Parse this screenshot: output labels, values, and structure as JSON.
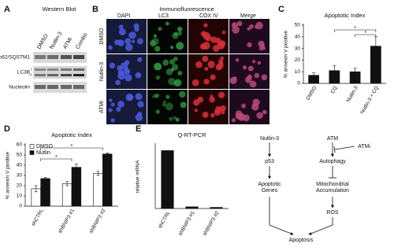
{
  "panels": {
    "A": {
      "letter": "A",
      "title": "Western Blot",
      "lanes": [
        "DMSO",
        "Nutlin-3",
        "ATMi",
        "Combo"
      ],
      "rows": [
        "p62/SQSTM1",
        "LC3B",
        "Nucleolin"
      ],
      "lc3_forms": [
        "I",
        "II"
      ]
    },
    "B": {
      "letter": "B",
      "title": "Immunofluorescence",
      "columns": [
        "DAPI",
        "LC3",
        "COX IV",
        "Merge"
      ],
      "rows": [
        "DMSO",
        "Nutlin-3",
        "ATMi"
      ]
    },
    "C": {
      "letter": "C"
    },
    "D": {
      "letter": "D"
    },
    "E": {
      "letter": "E"
    }
  },
  "chart_data": [
    {
      "type": "bar",
      "title": "Apoptotic Index",
      "y_label": "% annexin V positive",
      "categories": [
        "DMSO",
        "CQ",
        "Nutlin-3",
        "Nutlin-3 + CQ"
      ],
      "values": [
        7,
        11,
        10,
        32
      ],
      "errors": [
        2,
        4,
        3,
        8
      ],
      "color": "#111111",
      "ylim": [
        0,
        50
      ],
      "yticks": [
        0,
        10,
        20,
        30,
        40,
        50
      ],
      "annotations": [
        "*",
        "*"
      ]
    },
    {
      "type": "bar",
      "title": "Apoptotic Index",
      "y_label": "% annexin V positive",
      "categories": [
        "shCTRL",
        "shBNIP3 #1",
        "shBNIP3 #2"
      ],
      "series": [
        {
          "name": "DMSO",
          "color": "#ffffff",
          "values": [
            17,
            22,
            32
          ],
          "errors": [
            3,
            2,
            2
          ]
        },
        {
          "name": "Nutlin",
          "color": "#111111",
          "values": [
            27,
            38,
            51
          ],
          "errors": [
            1,
            3,
            1
          ]
        }
      ],
      "ylim": [
        0,
        60
      ],
      "yticks": [
        0,
        10,
        20,
        30,
        40,
        50,
        60
      ],
      "legend": "upper-left",
      "annotations": [
        "*",
        "*"
      ]
    },
    {
      "type": "bar",
      "title": "Q-RT-PCR",
      "y_label": "relative mRNA",
      "categories": [
        "shCTRL",
        "shBNIP3 #1",
        "shBNIP3 #2"
      ],
      "values": [
        1,
        0.03,
        0.02
      ],
      "color": "#111111",
      "ylim": [
        0,
        1.1
      ]
    }
  ],
  "diagram": {
    "nodes": [
      {
        "label": [
          "Nutlin-3"
        ]
      },
      {
        "label": [
          "p53"
        ]
      },
      {
        "label": [
          "Apoptotic",
          "Genes"
        ]
      },
      {
        "label": [
          "ATM"
        ]
      },
      {
        "label": [
          "ATMi"
        ]
      },
      {
        "label": [
          "Autophagy"
        ]
      },
      {
        "label": [
          "Mitochondrial",
          "Accumulation"
        ]
      },
      {
        "label": [
          "ROS"
        ]
      },
      {
        "label": [
          "Apoptosis"
        ]
      }
    ]
  }
}
